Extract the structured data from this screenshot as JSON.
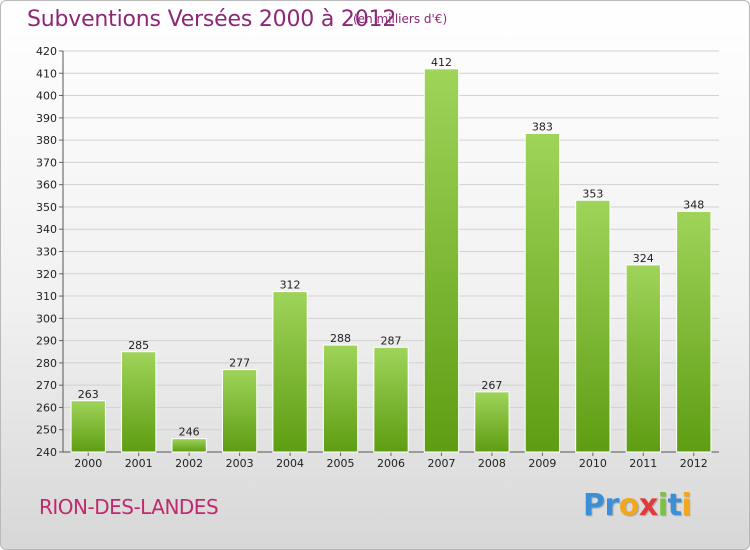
{
  "title": "Subventions Versées 2000 à 2012",
  "subtitle": "(en milliers d'€)",
  "commune": "RION-DES-LANDES",
  "logo": {
    "letters": [
      {
        "char": "P",
        "color": "#3a8fd6"
      },
      {
        "char": "r",
        "color": "#3a8fd6"
      },
      {
        "char": "o",
        "color": "#f2a81d"
      },
      {
        "char": "x",
        "color": "#e23a3a"
      },
      {
        "char": "i",
        "color": "#7cc142"
      },
      {
        "char": "t",
        "color": "#3a8fd6"
      },
      {
        "char": "i",
        "color": "#f2a81d"
      }
    ]
  },
  "colors": {
    "bar_top": "#9fd45a",
    "bar_bottom": "#5e9d12",
    "grid": "#d2d2d2",
    "title": "#8b2878"
  },
  "chart_data": {
    "type": "bar",
    "categories": [
      "2000",
      "2001",
      "2002",
      "2003",
      "2004",
      "2005",
      "2006",
      "2007",
      "2008",
      "2009",
      "2010",
      "2011",
      "2012"
    ],
    "values": [
      263,
      285,
      246,
      277,
      312,
      288,
      287,
      412,
      267,
      383,
      353,
      324,
      348
    ],
    "title": "Subventions Versées 2000 à 2012",
    "xlabel": "",
    "ylabel": "",
    "ylim": [
      240,
      420
    ],
    "yticks": [
      240,
      250,
      260,
      270,
      280,
      290,
      300,
      310,
      320,
      330,
      340,
      350,
      360,
      370,
      380,
      390,
      400,
      410,
      420
    ],
    "grid": true,
    "legend": "none"
  }
}
